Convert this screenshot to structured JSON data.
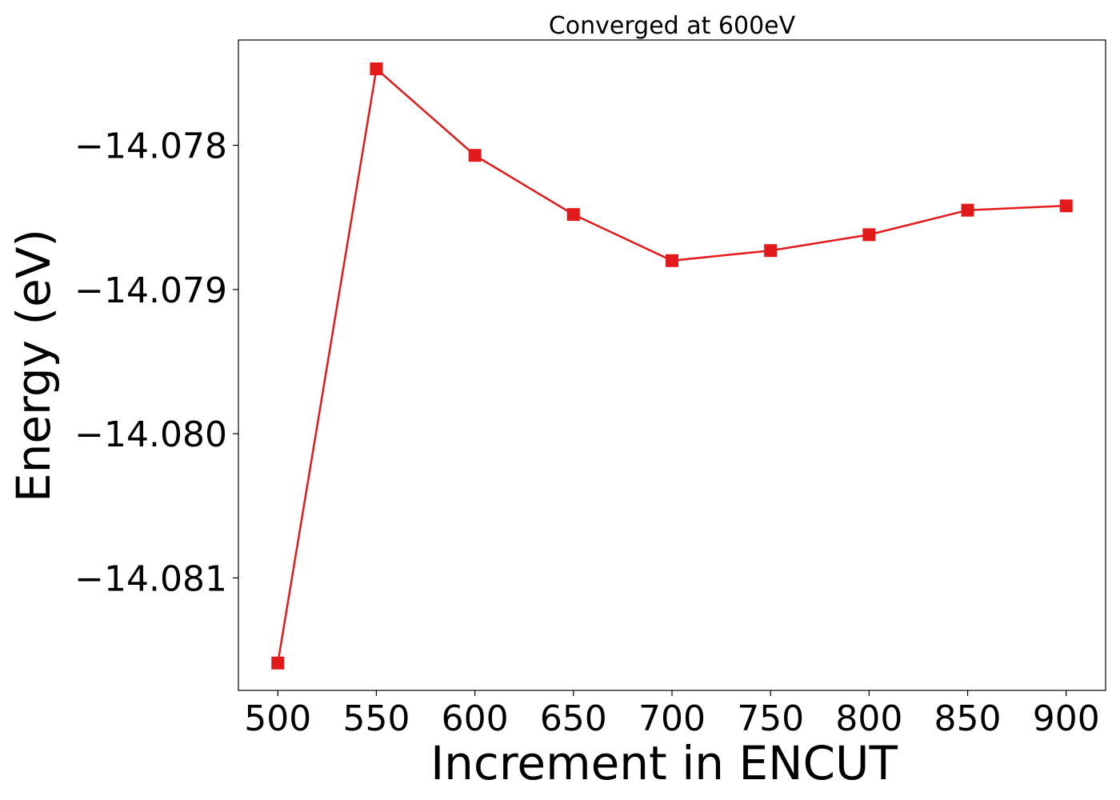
{
  "chart_data": {
    "type": "line",
    "title": "Converged at 600eV",
    "xlabel": "Increment in ENCUT",
    "ylabel": "Energy (eV)",
    "x": [
      500,
      550,
      600,
      650,
      700,
      750,
      800,
      850,
      900
    ],
    "series": [
      {
        "values": [
          -14.08159,
          -14.07747,
          -14.07807,
          -14.07848,
          -14.0788,
          -14.07873,
          -14.07862,
          -14.07845,
          -14.07842
        ],
        "color": "#e31a1c",
        "marker": "square"
      }
    ],
    "xlim": [
      480,
      920
    ],
    "ylim": [
      -14.08178,
      -14.07727
    ],
    "xticks": [
      500,
      550,
      600,
      650,
      700,
      750,
      800,
      850,
      900
    ],
    "xtick_labels": [
      "500",
      "550",
      "600",
      "650",
      "700",
      "750",
      "800",
      "850",
      "900"
    ],
    "yticks": [
      -14.078,
      -14.079,
      -14.08,
      -14.081
    ],
    "ytick_labels": [
      "−14.078",
      "−14.079",
      "−14.080",
      "−14.081"
    ],
    "grid": false,
    "legend": "none"
  }
}
